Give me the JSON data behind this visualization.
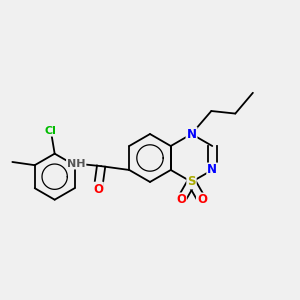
{
  "background_color": "#f0f0f0",
  "bond_color": "#000000",
  "atom_colors": {
    "N": "#0000ff",
    "O": "#ff0000",
    "S": "#aaaa00",
    "Cl": "#00bb00",
    "C": "#000000",
    "H": "#555555"
  },
  "figsize": [
    3.0,
    3.0
  ],
  "dpi": 100
}
